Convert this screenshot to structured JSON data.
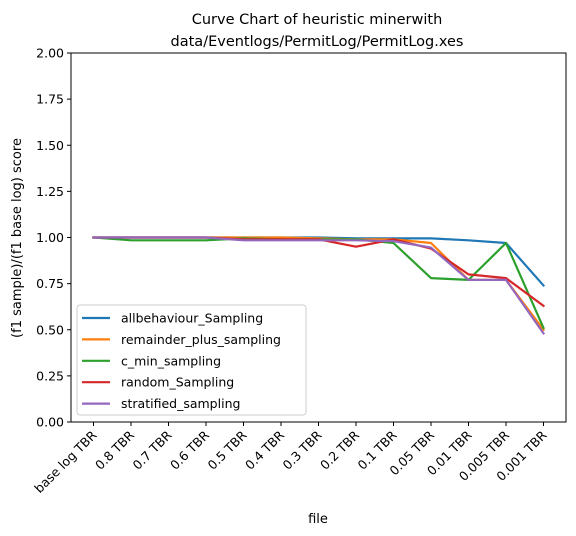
{
  "chart_data": {
    "type": "line",
    "title_line1": "Curve Chart of heuristic minerwith",
    "title_line2": "data/Eventlogs/PermitLog/PermitLog.xes",
    "xlabel": "file",
    "ylabel": "(f1 sample)/(f1 base log) score",
    "categories": [
      "base log TBR",
      "0.8 TBR",
      "0.7 TBR",
      "0.6 TBR",
      "0.5 TBR",
      "0.4 TBR",
      "0.3 TBR",
      "0.2 TBR",
      "0.1 TBR",
      "0.05 TBR",
      "0.01 TBR",
      "0.005 TBR",
      "0.001 TBR"
    ],
    "ylim": [
      0,
      2
    ],
    "yticks": [
      "0.00",
      "0.25",
      "0.50",
      "0.75",
      "1.00",
      "1.25",
      "1.50",
      "1.75",
      "2.00"
    ],
    "legend_position": "lower-left",
    "grid": false,
    "series": [
      {
        "name": "allbehaviour_Sampling",
        "color": "#1f77b4",
        "values": [
          1.0,
          1.0,
          1.0,
          1.0,
          1.0,
          1.0,
          1.0,
          0.995,
          0.995,
          0.995,
          0.985,
          0.97,
          0.74
        ]
      },
      {
        "name": "remainder_plus_sampling",
        "color": "#ff7f0e",
        "values": [
          1.0,
          1.0,
          1.0,
          1.0,
          1.0,
          1.0,
          0.995,
          0.99,
          0.99,
          0.97,
          0.77,
          0.77,
          0.5
        ]
      },
      {
        "name": "c_min_sampling",
        "color": "#2ca02c",
        "values": [
          1.0,
          0.985,
          0.985,
          0.985,
          0.995,
          0.99,
          0.99,
          0.99,
          0.97,
          0.78,
          0.77,
          0.97,
          0.51
        ]
      },
      {
        "name": "random_Sampling",
        "color": "#d62728",
        "values": [
          1.0,
          1.0,
          1.0,
          1.0,
          0.99,
          0.99,
          0.99,
          0.95,
          0.99,
          0.94,
          0.8,
          0.78,
          0.63
        ]
      },
      {
        "name": "stratified_sampling",
        "color": "#9467bd",
        "values": [
          1.0,
          1.0,
          1.0,
          1.0,
          0.985,
          0.985,
          0.985,
          0.985,
          0.98,
          0.945,
          0.77,
          0.77,
          0.48
        ]
      }
    ]
  }
}
